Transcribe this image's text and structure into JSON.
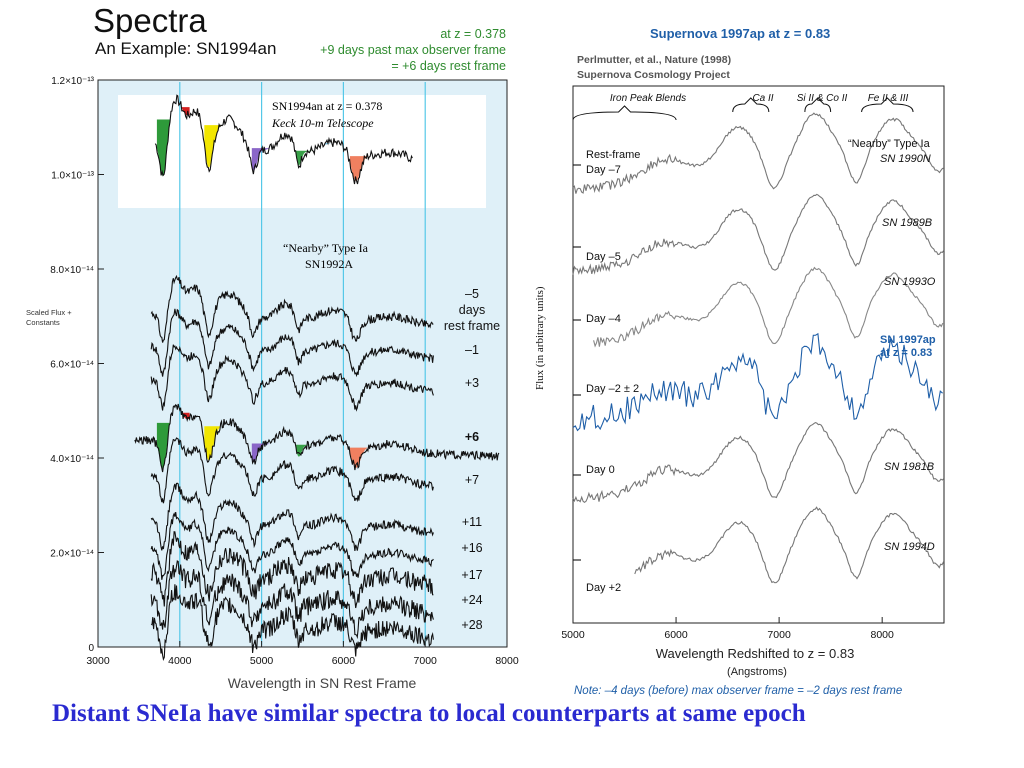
{
  "slide": {
    "title": "Spectra",
    "subtitle": "An Example: SN1994an",
    "note_lines": [
      "at z = 0.378",
      "+9 days past max observer frame",
      "= +6 days rest frame"
    ],
    "caption": "Distant SNeIa have similar spectra to local counterparts at same epoch",
    "footnote": "Note:  –4 days (before) max observer frame = –2 days rest frame"
  },
  "colors": {
    "panel_bg": "#dff0f8",
    "inset_bg": "#ffffff",
    "vline": "#55c8e8",
    "blue_spectrum": "#1f5fa8",
    "caption": "#2a2ad0",
    "accent_green": "#2e8b2e",
    "feature_colors": [
      "#2e9a3a",
      "#d42020",
      "#f2e600",
      "#8a66c8",
      "#38a048",
      "#7fc8e8",
      "#f08060"
    ]
  },
  "chart_data": [
    {
      "type": "line",
      "title": "",
      "xlabel": "Wavelength in SN Rest Frame",
      "ylabel": "Scaled Flux + Constants",
      "xlim": [
        3000,
        8000
      ],
      "ylim": [
        0,
        1.2e-13
      ],
      "x_ticks": [
        "3000",
        "4000",
        "5000",
        "6000",
        "7000",
        "8000"
      ],
      "y_ticks": [
        "0",
        "2.0×10⁻¹⁴",
        "4.0×10⁻¹⁴",
        "6.0×10⁻¹⁴",
        "8.0×10⁻¹⁴",
        "1.0×10⁻¹³",
        "1.2×10⁻¹³"
      ],
      "grid": false,
      "vertical_markers": [
        4000,
        5000,
        6000,
        7000
      ],
      "inset_label_lines": [
        "SN1994an at z = 0.378",
        "Keck 10-m Telescope"
      ],
      "nearby_label_lines": [
        "“Nearby” Type Ia",
        "SN1992A"
      ],
      "series": [
        {
          "name": "–5 days rest frame",
          "offset": 7e-14
        },
        {
          "name": "–1",
          "offset": 6.3e-14
        },
        {
          "name": "+3",
          "offset": 5.6e-14
        },
        {
          "name": "+6",
          "offset": 4.3e-14
        },
        {
          "name": "+7",
          "offset": 3.6e-14
        },
        {
          "name": "+11",
          "offset": 2.6e-14
        },
        {
          "name": "+16",
          "offset": 2e-14
        },
        {
          "name": "+17",
          "offset": 1.5e-14
        },
        {
          "name": "+24",
          "offset": 9e-15
        },
        {
          "name": "+28",
          "offset": 4e-15
        }
      ],
      "series_labels": [
        "–5",
        "days",
        "rest frame",
        "–1",
        "+3",
        "+6",
        "+7",
        "+11",
        "+16",
        "+17",
        "+24",
        "+28"
      ]
    },
    {
      "type": "line",
      "title": "Supernova 1997ap  at z = 0.83",
      "credit_lines": [
        "Perlmutter, et al., Nature (1998)",
        "Supernova Cosmology Project"
      ],
      "xlabel": "Wavelength Redshifted to z = 0.83",
      "xlabel_unit": "(Angstroms)",
      "ylabel": "Flux (in arbitrary units)",
      "xlim": [
        5000,
        8600
      ],
      "x_ticks": [
        "5000",
        "6000",
        "7000",
        "8000"
      ],
      "grid": false,
      "feature_labels": [
        "Iron Peak Blends",
        "Ca II",
        "Si II & Co II",
        "Fe II & III"
      ],
      "day_labels": [
        "Rest-frame",
        "Day –7",
        "Day –5",
        "Day –4",
        "Day –2 ± 2",
        "Day 0",
        "Day +2"
      ],
      "sn_labels": [
        "“Nearby” Type Ia",
        "SN 1990N",
        "SN 1989B",
        "SN 1993O",
        "SN 1997ap",
        "at z = 0.83",
        "SN 1981B",
        "SN 1994D"
      ],
      "series": [
        {
          "name": "SN 1990N",
          "day": "Day –7"
        },
        {
          "name": "SN 1989B",
          "day": "Day –5"
        },
        {
          "name": "SN 1993O",
          "day": "Day –4"
        },
        {
          "name": "SN 1997ap",
          "day": "Day –2 ± 2"
        },
        {
          "name": "SN 1981B",
          "day": "Day 0"
        },
        {
          "name": "SN 1994D",
          "day": "Day +2"
        }
      ]
    }
  ]
}
